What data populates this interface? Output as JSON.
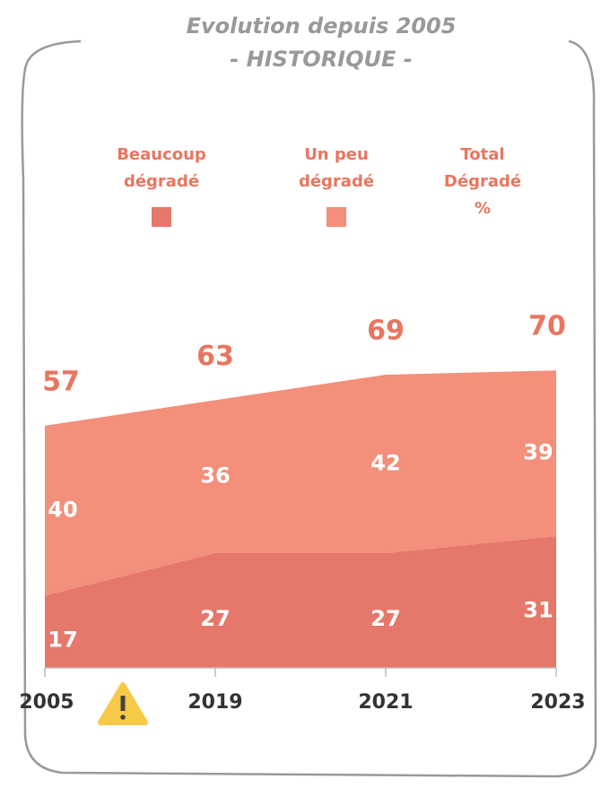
{
  "chart_data": {
    "type": "stacked_area",
    "title": "Evolution depuis 2005",
    "subtitle": "- HISTORIQUE -",
    "categories": [
      "2005",
      "2019",
      "2021",
      "2023"
    ],
    "series": [
      {
        "name": "Beaucoup dégradé",
        "color": "#e5786a",
        "values": [
          17,
          27,
          27,
          31
        ]
      },
      {
        "name": "Un peu dégradé",
        "color": "#f38f7a",
        "values": [
          40,
          36,
          42,
          39
        ]
      }
    ],
    "totals": {
      "name": "Total Dégradé %",
      "color": "#e8765f",
      "values": [
        57,
        63,
        69,
        70
      ]
    },
    "ylim": [
      0,
      100
    ]
  }
}
